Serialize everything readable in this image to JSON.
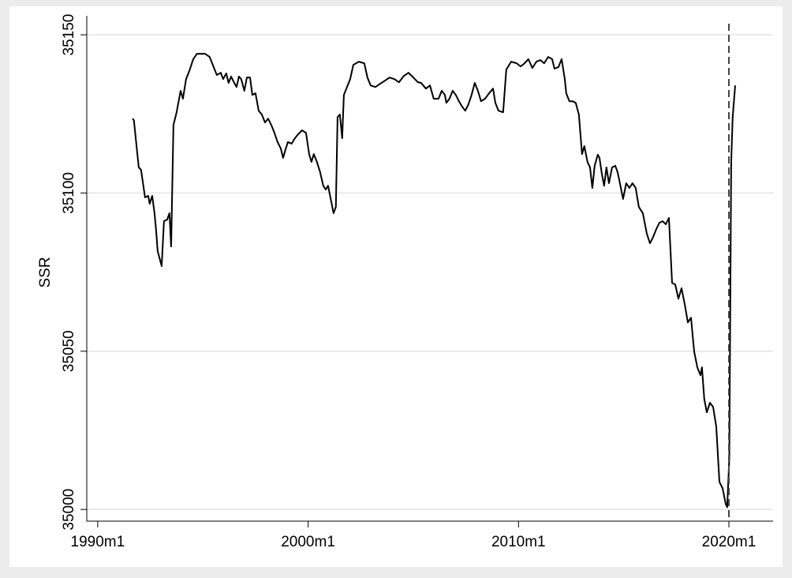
{
  "chart_data": {
    "type": "line",
    "y_label": "SSR",
    "xlim": [
      1989.48,
      2022.1
    ],
    "ylim": [
      34996.3,
      35156
    ],
    "xticks": [
      {
        "value": 1990,
        "label": "1990m1"
      },
      {
        "value": 2000,
        "label": "2000m1"
      },
      {
        "value": 2010,
        "label": "2010m1"
      },
      {
        "value": 2020,
        "label": "2020m1"
      }
    ],
    "yticks": [
      35000,
      35050,
      35100,
      35150
    ],
    "grid": true,
    "xline": 2020,
    "series": [
      {
        "color": "#000000",
        "x": [
          1991.65,
          1991.72,
          1991.95,
          1992.06,
          1992.25,
          1992.4,
          1992.47,
          1992.59,
          1992.7,
          1992.77,
          1992.85,
          1993.04,
          1993.15,
          1993.3,
          1993.41,
          1993.49,
          1993.6,
          1993.75,
          1993.94,
          1994.05,
          1994.2,
          1994.35,
          1994.54,
          1994.72,
          1995.1,
          1995.32,
          1995.47,
          1995.66,
          1995.85,
          1995.96,
          1996.11,
          1996.22,
          1996.34,
          1996.49,
          1996.6,
          1996.71,
          1996.82,
          1996.97,
          1997.09,
          1997.24,
          1997.35,
          1997.5,
          1997.65,
          1997.8,
          1997.95,
          1998.1,
          1998.25,
          1998.4,
          1998.55,
          1998.7,
          1998.81,
          1998.92,
          1999.04,
          1999.22,
          1999.37,
          1999.52,
          1999.71,
          1999.9,
          2000.05,
          2000.16,
          2000.27,
          2000.42,
          2000.57,
          2000.72,
          2000.84,
          2000.95,
          2001.1,
          2001.21,
          2001.32,
          2001.4,
          2001.51,
          2001.62,
          2001.7,
          2001.85,
          2002.0,
          2002.15,
          2002.41,
          2002.67,
          2002.82,
          2002.97,
          2003.2,
          2003.42,
          2003.65,
          2003.87,
          2004.1,
          2004.32,
          2004.55,
          2004.77,
          2005.0,
          2005.22,
          2005.37,
          2005.6,
          2005.79,
          2005.97,
          2006.2,
          2006.35,
          2006.5,
          2006.57,
          2006.72,
          2006.87,
          2007.02,
          2007.17,
          2007.32,
          2007.47,
          2007.62,
          2007.77,
          2007.92,
          2008.07,
          2008.22,
          2008.41,
          2008.6,
          2008.79,
          2008.9,
          2009.05,
          2009.27,
          2009.42,
          2009.65,
          2009.91,
          2010.1,
          2010.29,
          2010.47,
          2010.66,
          2010.85,
          2011.04,
          2011.22,
          2011.41,
          2011.6,
          2011.71,
          2011.9,
          2012.05,
          2012.2,
          2012.27,
          2012.42,
          2012.57,
          2012.72,
          2012.87,
          2013.02,
          2013.13,
          2013.28,
          2013.4,
          2013.51,
          2013.62,
          2013.77,
          2013.85,
          2013.96,
          2014.07,
          2014.18,
          2014.3,
          2014.45,
          2014.6,
          2014.71,
          2014.82,
          2014.97,
          2015.12,
          2015.27,
          2015.42,
          2015.57,
          2015.72,
          2015.91,
          2016.1,
          2016.25,
          2016.4,
          2016.55,
          2016.7,
          2016.85,
          2017.0,
          2017.15,
          2017.3,
          2017.45,
          2017.6,
          2017.75,
          2017.9,
          2018.05,
          2018.2,
          2018.35,
          2018.5,
          2018.65,
          2018.72,
          2018.83,
          2018.95,
          2019.1,
          2019.25,
          2019.4,
          2019.55,
          2019.7,
          2019.85,
          2019.92,
          2020.02,
          2020.11,
          2020.18,
          2020.3
        ],
        "values": [
          35123.5,
          35123,
          35108.1,
          35107.3,
          35098.6,
          35099.1,
          35096.6,
          35099.1,
          35093.6,
          35088.6,
          35081.6,
          35076.9,
          35091.1,
          35091.6,
          35093.6,
          35083.1,
          35121.5,
          35125.5,
          35132.3,
          35129.8,
          35136,
          35138.5,
          35142.3,
          35144,
          35144,
          35143,
          35140.5,
          35137.3,
          35138,
          35136,
          35137.8,
          35134.8,
          35136.8,
          35134.8,
          35133.5,
          35136.8,
          35136,
          35132.3,
          35136.5,
          35136.5,
          35131,
          35131.5,
          35126,
          35124.8,
          35122.3,
          35123.5,
          35121.5,
          35119,
          35116.1,
          35114.1,
          35111.1,
          35113.6,
          35116.1,
          35115.6,
          35117.3,
          35118.5,
          35119.8,
          35119,
          35112.3,
          35109.8,
          35112.3,
          35109.8,
          35106.6,
          35102.3,
          35101.1,
          35102.3,
          35097.3,
          35093.6,
          35095.6,
          35124,
          35124.8,
          35117.3,
          35131,
          35133.5,
          35136,
          35140.5,
          35141.5,
          35141,
          35136.5,
          35134,
          35133.5,
          35134.5,
          35135.5,
          35136.5,
          35136,
          35135,
          35137,
          35138,
          35136.5,
          35135,
          35134.8,
          35133,
          35134,
          35129.8,
          35129.8,
          35132.3,
          35131,
          35128.5,
          35129.8,
          35132.3,
          35131,
          35129,
          35127.3,
          35126,
          35128,
          35131,
          35134.8,
          35132.3,
          35129,
          35129.8,
          35131.5,
          35133,
          35128.5,
          35126,
          35125.5,
          35139,
          35141.5,
          35141,
          35140,
          35141,
          35142.3,
          35139.5,
          35141.5,
          35142,
          35141,
          35143,
          35142.3,
          35139.3,
          35139.8,
          35142.3,
          35136,
          35131.5,
          35129,
          35129,
          35128.5,
          35124.8,
          35112.3,
          35114.8,
          35109.8,
          35108.1,
          35101.6,
          35108.6,
          35112.1,
          35111.1,
          35106.1,
          35102.3,
          35108.1,
          35103.1,
          35108.1,
          35108.6,
          35106.6,
          35103.1,
          35098.1,
          35103.1,
          35101.6,
          35103.1,
          35101.6,
          35095.6,
          35093.6,
          35087.1,
          35084.1,
          35086.1,
          35088.6,
          35090.6,
          35091.1,
          35090.1,
          35092.1,
          35071.6,
          35071.1,
          35066.6,
          35069.9,
          35064.9,
          35059.1,
          35060.6,
          35049.9,
          35044.9,
          35042.4,
          35044.9,
          35034.9,
          35030.7,
          35033.7,
          35032.4,
          35026.2,
          35008.7,
          35006.7,
          35001.7,
          35000.7,
          35016.2,
          35109.8,
          35124,
          35134
        ]
      }
    ]
  }
}
